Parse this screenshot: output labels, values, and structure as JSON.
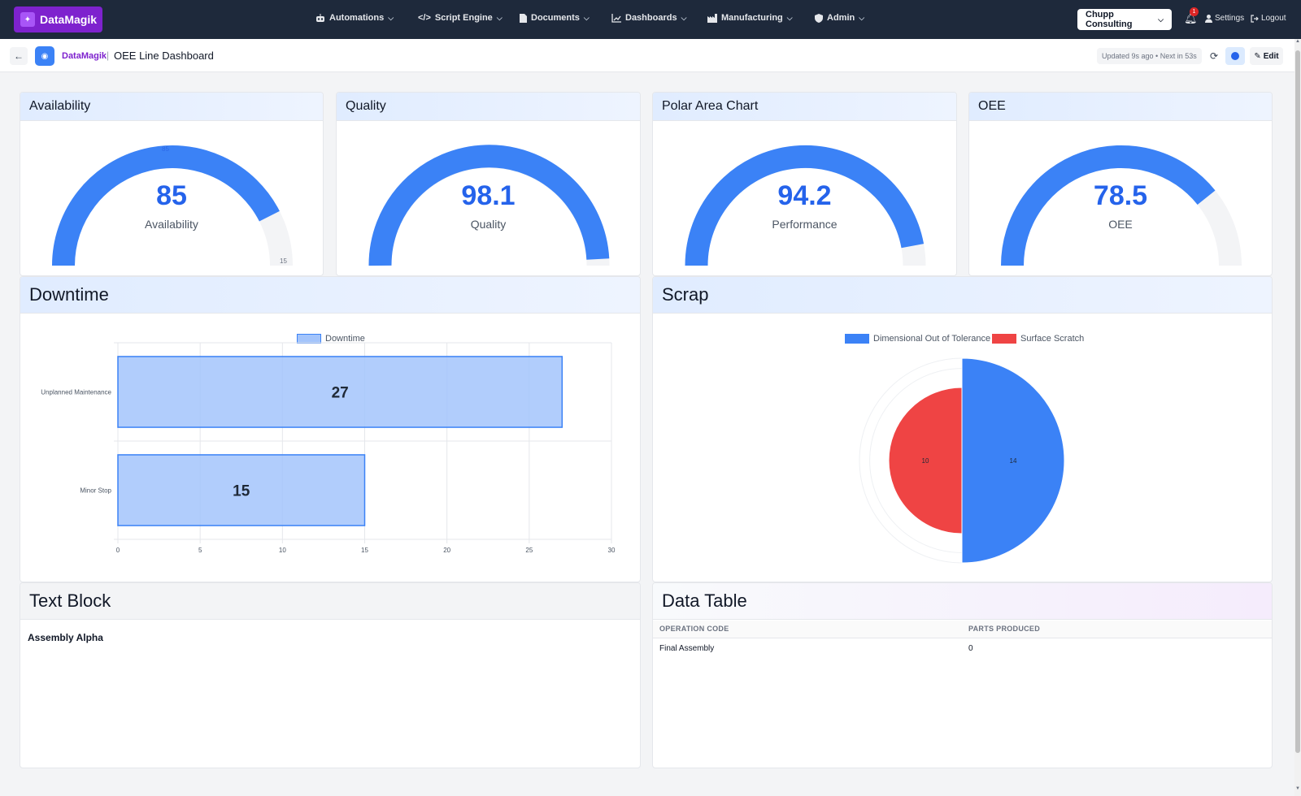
{
  "topbar": {
    "brand": "DataMagik",
    "nav": [
      {
        "label": "Automations",
        "icon": "robot-icon"
      },
      {
        "label": "Script Engine",
        "icon": "code-icon"
      },
      {
        "label": "Documents",
        "icon": "document-icon"
      },
      {
        "label": "Dashboards",
        "icon": "chart-line-icon"
      },
      {
        "label": "Manufacturing",
        "icon": "factory-icon"
      },
      {
        "label": "Admin",
        "icon": "shield-icon"
      }
    ],
    "org": "Chupp Consulting",
    "notification_count": "1",
    "settings": "Settings",
    "logout": "Logout"
  },
  "subbar": {
    "app": "DataMagik",
    "title": "OEE Line Dashboard",
    "updated": "Updated 9s ago • Next in 53s",
    "edit": "Edit"
  },
  "gauges": [
    {
      "title": "Availability",
      "value": "85",
      "label": "Availability",
      "fraction": 0.85,
      "max_tick": "15",
      "mid_tick": "85"
    },
    {
      "title": "Quality",
      "value": "98.1",
      "label": "Quality",
      "fraction": 0.981
    },
    {
      "title": "Polar Area Chart",
      "value": "94.2",
      "label": "Performance",
      "fraction": 0.942
    },
    {
      "title": "OEE",
      "value": "78.5",
      "label": "OEE",
      "fraction": 0.785
    }
  ],
  "downtime": {
    "title": "Downtime",
    "legend": "Downtime"
  },
  "scrap": {
    "title": "Scrap",
    "legend": [
      "Dimensional Out of Tolerance",
      "Surface Scratch"
    ]
  },
  "text_block": {
    "title": "Text Block",
    "content": "Assembly Alpha"
  },
  "data_table": {
    "title": "Data Table",
    "columns": [
      "OPERATION CODE",
      "PARTS PRODUCED"
    ],
    "rows": [
      [
        "Final Assembly",
        "0"
      ]
    ]
  },
  "colors": {
    "accent": "#3b82f6",
    "gauge_bg": "#f3f4f6",
    "bar_fill": "#a3c4fb",
    "bar_stroke": "#3b82f6",
    "red": "#ef4444"
  },
  "chart_data": [
    {
      "type": "bar",
      "orientation": "horizontal",
      "categories": [
        "Unplanned Maintenance",
        "Minor Stop"
      ],
      "series": [
        {
          "name": "Downtime",
          "values": [
            27,
            15
          ]
        }
      ],
      "xlim": [
        0,
        30
      ],
      "xticks": [
        0,
        5,
        10,
        15,
        20,
        25,
        30
      ],
      "grid": true,
      "legend_position": "top"
    },
    {
      "type": "pie",
      "variant": "polar-area",
      "categories": [
        "Dimensional Out of Tolerance",
        "Surface Scratch"
      ],
      "values": [
        14,
        10
      ],
      "rmax": 14,
      "legend_position": "top"
    }
  ]
}
